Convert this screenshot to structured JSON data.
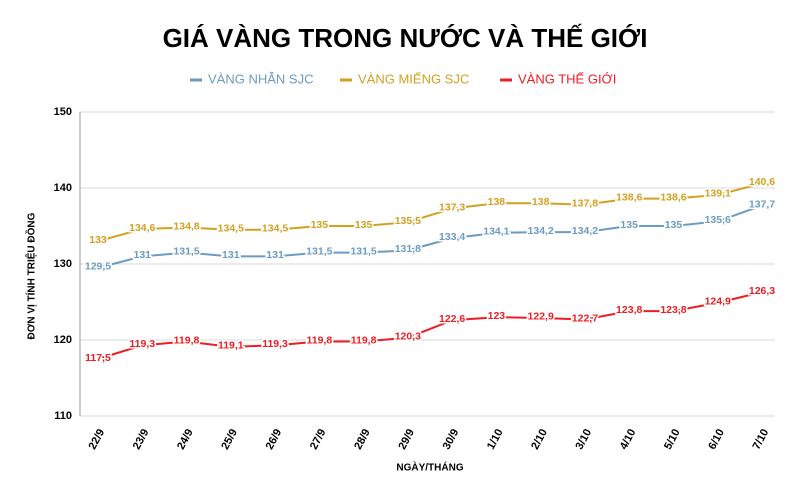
{
  "chart_data": {
    "type": "line",
    "title": "GIÁ VÀNG TRONG NƯỚC VÀ THẾ GIỚI",
    "x_label": "NGÀY/THÁNG",
    "y_label": "ĐƠN VỊ TÍNH TRIỆU ĐỒNG",
    "categories": [
      "22/9",
      "23/9",
      "24/9",
      "25/9",
      "26/9",
      "27/9",
      "28/9",
      "29/9",
      "30/9",
      "1/10",
      "2/10",
      "3/10",
      "4/10",
      "5/10",
      "6/10",
      "7/10"
    ],
    "series": [
      {
        "name": "VÀNG NHẪN SJC",
        "color": "#6b9bc3",
        "values": [
          129.5,
          131,
          131.5,
          131,
          131,
          131.5,
          131.5,
          131.8,
          133.4,
          134.1,
          134.2,
          134.2,
          135,
          135,
          135.6,
          137.7
        ],
        "value_labels": [
          "129,5",
          "131",
          "131,5",
          "131",
          "131",
          "131,5",
          "131,5",
          "131,8",
          "133,4",
          "134,1",
          "134,2",
          "134,2",
          "135",
          "135",
          "135,6",
          "137,7"
        ]
      },
      {
        "name": "VÀNG MIẾNG SJC",
        "color": "#d4a020",
        "values": [
          133,
          134.6,
          134.8,
          134.5,
          134.5,
          135,
          135,
          135.5,
          137.3,
          138,
          138,
          137.8,
          138.6,
          138.6,
          139.1,
          140.6
        ],
        "value_labels": [
          "133",
          "134,6",
          "134,8",
          "134,5",
          "134,5",
          "135",
          "135",
          "135,5",
          "137,3",
          "138",
          "138",
          "137,8",
          "138,6",
          "138,6",
          "139,1",
          "140,6"
        ]
      },
      {
        "name": "VÀNG THẾ GIỚI",
        "color": "#ee1c24",
        "values": [
          117.5,
          119.3,
          119.8,
          119.1,
          119.3,
          119.8,
          119.8,
          120.3,
          122.6,
          123,
          122.9,
          122.7,
          123.8,
          123.8,
          124.9,
          126.3
        ],
        "value_labels": [
          "117,5",
          "119,3",
          "119,8",
          "119,1",
          "119,3",
          "119,8",
          "119,8",
          "120,3",
          "122,6",
          "123",
          "122,9",
          "122,7",
          "123,8",
          "123,8",
          "124,9",
          "126,3"
        ]
      }
    ],
    "ylim": [
      110,
      150
    ],
    "yticks": [
      110,
      120,
      130,
      140,
      150
    ],
    "grid": true
  }
}
